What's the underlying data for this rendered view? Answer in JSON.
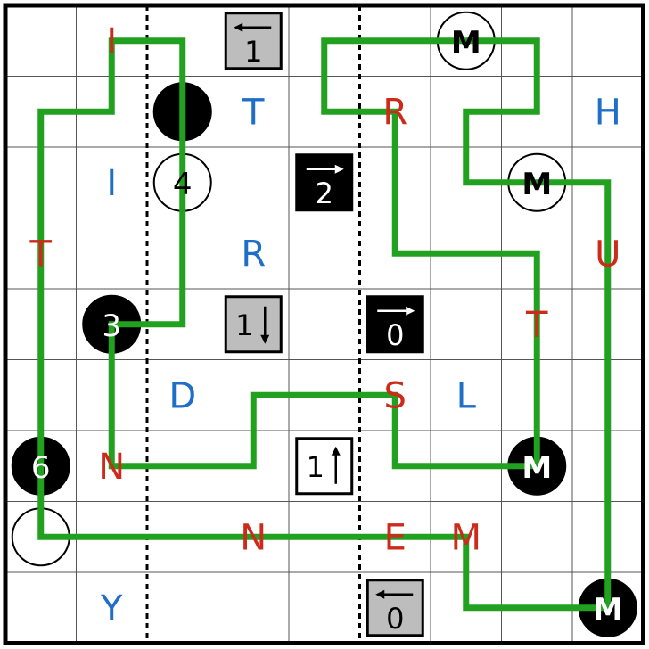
{
  "puzzle": {
    "rows": 9,
    "cols": 9,
    "colors": {
      "grid": "#000000",
      "background": "#ffffff",
      "path": "#22a020",
      "red_letter": "#cc2a1a",
      "blue_letter": "#1f6fc8",
      "gray_box": "#bdbdbd",
      "black_box": "#000000"
    },
    "dotted_lines_after_col": [
      2,
      5
    ],
    "letters": [
      {
        "r": 0,
        "c": 1,
        "ch": "I",
        "color": "red"
      },
      {
        "r": 1,
        "c": 3,
        "ch": "T",
        "color": "blue"
      },
      {
        "r": 1,
        "c": 5,
        "ch": "R",
        "color": "red"
      },
      {
        "r": 1,
        "c": 8,
        "ch": "H",
        "color": "blue"
      },
      {
        "r": 2,
        "c": 1,
        "ch": "I",
        "color": "blue"
      },
      {
        "r": 3,
        "c": 0,
        "ch": "T",
        "color": "red"
      },
      {
        "r": 3,
        "c": 3,
        "ch": "R",
        "color": "blue"
      },
      {
        "r": 3,
        "c": 8,
        "ch": "U",
        "color": "red"
      },
      {
        "r": 4,
        "c": 7,
        "ch": "T",
        "color": "red"
      },
      {
        "r": 5,
        "c": 2,
        "ch": "D",
        "color": "blue"
      },
      {
        "r": 5,
        "c": 5,
        "ch": "S",
        "color": "red"
      },
      {
        "r": 5,
        "c": 6,
        "ch": "L",
        "color": "blue"
      },
      {
        "r": 6,
        "c": 1,
        "ch": "N",
        "color": "red"
      },
      {
        "r": 7,
        "c": 3,
        "ch": "N",
        "color": "red"
      },
      {
        "r": 7,
        "c": 5,
        "ch": "E",
        "color": "red"
      },
      {
        "r": 7,
        "c": 6,
        "ch": "M",
        "color": "red"
      },
      {
        "r": 8,
        "c": 1,
        "ch": "Y",
        "color": "blue"
      }
    ],
    "circles": [
      {
        "r": 0,
        "c": 6,
        "fill": "white",
        "text": "M"
      },
      {
        "r": 1,
        "c": 2,
        "fill": "black",
        "text": ""
      },
      {
        "r": 2,
        "c": 2,
        "fill": "white",
        "text": "4"
      },
      {
        "r": 2,
        "c": 7,
        "fill": "white",
        "text": "M"
      },
      {
        "r": 4,
        "c": 1,
        "fill": "black",
        "text": "3"
      },
      {
        "r": 6,
        "c": 0,
        "fill": "black",
        "text": "6"
      },
      {
        "r": 6,
        "c": 7,
        "fill": "black",
        "text": "M"
      },
      {
        "r": 7,
        "c": 0,
        "fill": "white",
        "text": ""
      },
      {
        "r": 8,
        "c": 8,
        "fill": "black",
        "text": "M"
      }
    ],
    "arrow_clues": [
      {
        "r": 0,
        "c": 3,
        "style": "gray",
        "num": "1",
        "dir": "left"
      },
      {
        "r": 2,
        "c": 4,
        "style": "black",
        "num": "2",
        "dir": "right"
      },
      {
        "r": 4,
        "c": 3,
        "style": "gray",
        "num": "1",
        "dir": "down"
      },
      {
        "r": 4,
        "c": 5,
        "style": "black",
        "num": "0",
        "dir": "right"
      },
      {
        "r": 6,
        "c": 4,
        "style": "white",
        "num": "1",
        "dir": "up"
      },
      {
        "r": 8,
        "c": 5,
        "style": "gray",
        "num": "0",
        "dir": "left"
      }
    ],
    "path_loops": [
      [
        [
          0,
          1
        ],
        [
          0,
          2
        ],
        [
          4,
          2
        ],
        [
          4,
          1
        ],
        [
          6,
          1
        ],
        [
          6,
          3
        ],
        [
          5,
          3
        ],
        [
          5,
          5
        ],
        [
          6,
          5
        ],
        [
          6,
          7
        ],
        [
          3,
          7
        ],
        [
          3,
          5
        ],
        [
          1,
          5
        ],
        [
          1,
          4
        ],
        [
          0,
          4
        ],
        [
          0,
          7
        ],
        [
          1,
          7
        ],
        [
          1,
          6
        ],
        [
          2,
          6
        ],
        [
          2,
          8
        ],
        [
          8,
          8
        ],
        [
          8,
          6
        ],
        [
          7,
          6
        ],
        [
          7,
          0
        ],
        [
          1,
          0
        ],
        [
          1,
          1
        ],
        [
          0,
          1
        ]
      ]
    ]
  }
}
